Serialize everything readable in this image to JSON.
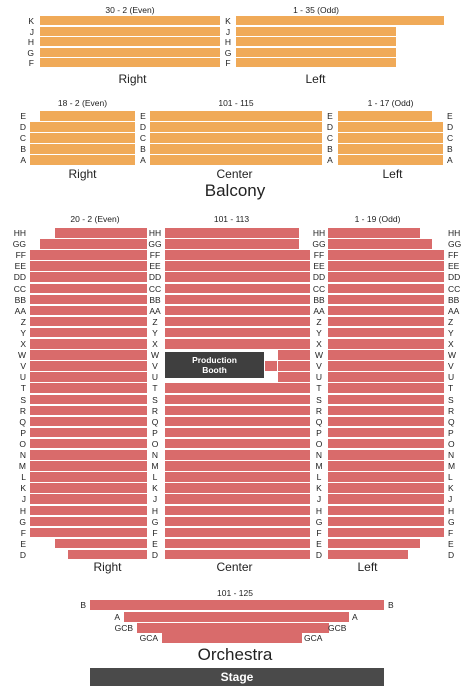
{
  "balcony": {
    "title": "Balcony",
    "upper": {
      "left_header": "30 - 2 (Even)",
      "right_header": "1 - 35 (Odd)",
      "rows": [
        "K",
        "J",
        "H",
        "G",
        "F"
      ],
      "label_right": "Right",
      "label_left": "Left"
    },
    "lower": {
      "left_header": "18 - 2 (Even)",
      "center_header": "101 - 115",
      "right_header": "1 - 17 (Odd)",
      "rows": [
        "E",
        "D",
        "C",
        "B",
        "A"
      ],
      "label_right": "Right",
      "label_center": "Center",
      "label_left": "Left"
    }
  },
  "orchestra": {
    "title": "Orchestra",
    "left_header": "20 - 2 (Even)",
    "center_header": "101 - 113",
    "right_header": "1 - 19 (Odd)",
    "rows": [
      "HH",
      "GG",
      "FF",
      "EE",
      "DD",
      "CC",
      "BB",
      "AA",
      "Z",
      "Y",
      "X",
      "W",
      "V",
      "U",
      "T",
      "S",
      "R",
      "Q",
      "P",
      "O",
      "N",
      "M",
      "L",
      "K",
      "J",
      "H",
      "G",
      "F",
      "E",
      "D"
    ],
    "booth_line1": "Production",
    "booth_line2": "Booth",
    "label_right": "Right",
    "label_center": "Center",
    "label_left": "Left",
    "pit_header": "101 - 125",
    "pit_rows": [
      "B",
      "A",
      "GCB",
      "GCA"
    ],
    "stage": "Stage"
  },
  "colors": {
    "balcony": "#f0aa58",
    "orchestra": "#d96b6b",
    "booth": "#3f3f3f",
    "stage": "#4a4a4a"
  }
}
